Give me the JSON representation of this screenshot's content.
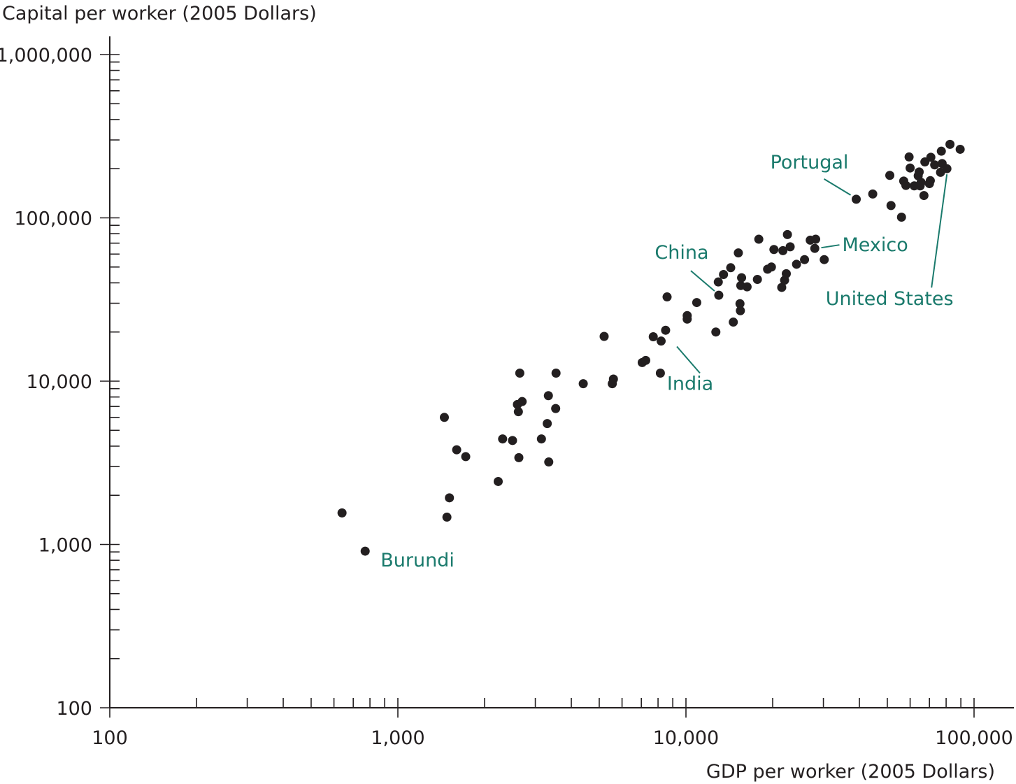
{
  "chart_data": {
    "type": "scatter",
    "xlabel": "GDP per worker (2005 Dollars)",
    "ylabel": "Capital per worker (2005 Dollars)",
    "xscale": "log",
    "yscale": "log",
    "xlim": [
      100,
      140000
    ],
    "ylim": [
      100,
      1200000
    ],
    "x_ticks": [
      100,
      1000,
      10000,
      100000
    ],
    "x_tick_labels": [
      "100",
      "1,000",
      "10,000",
      "100,000"
    ],
    "y_ticks": [
      100,
      1000,
      10000,
      100000,
      1000000
    ],
    "y_tick_labels": [
      "100",
      "1,000",
      "10,000",
      "100,000",
      "1,000,000"
    ],
    "grid": false,
    "marker_color": "#231f20",
    "annotation_color": "#1a7a6c",
    "points": [
      [
        640,
        1560
      ],
      [
        770,
        910
      ],
      [
        1450,
        6000
      ],
      [
        1480,
        1470
      ],
      [
        1510,
        1930
      ],
      [
        1600,
        3800
      ],
      [
        1720,
        3450
      ],
      [
        2230,
        2430
      ],
      [
        2310,
        4430
      ],
      [
        2500,
        4330
      ],
      [
        2600,
        7200
      ],
      [
        2620,
        6500
      ],
      [
        2630,
        3400
      ],
      [
        2650,
        11200
      ],
      [
        2700,
        7500
      ],
      [
        3150,
        4430
      ],
      [
        3300,
        5500
      ],
      [
        3330,
        8150
      ],
      [
        3340,
        3200
      ],
      [
        3530,
        6800
      ],
      [
        3540,
        11200
      ],
      [
        4400,
        9650
      ],
      [
        5200,
        18800
      ],
      [
        5550,
        9650
      ],
      [
        5600,
        10300
      ],
      [
        7050,
        13000
      ],
      [
        7250,
        13400
      ],
      [
        7700,
        18700
      ],
      [
        8150,
        11200
      ],
      [
        8200,
        17600
      ],
      [
        8500,
        20500
      ],
      [
        8600,
        32800
      ],
      [
        10100,
        25200
      ],
      [
        10100,
        24000
      ],
      [
        10900,
        30300
      ],
      [
        12700,
        20000
      ],
      [
        13000,
        33600
      ],
      [
        12950,
        40500
      ],
      [
        13500,
        45000
      ],
      [
        14300,
        49500
      ],
      [
        14600,
        23000
      ],
      [
        15200,
        61000
      ],
      [
        15400,
        29800
      ],
      [
        15450,
        27000
      ],
      [
        15500,
        38500
      ],
      [
        15600,
        43000
      ],
      [
        16300,
        37800
      ],
      [
        17700,
        42000
      ],
      [
        17900,
        74000
      ],
      [
        19200,
        48500
      ],
      [
        19800,
        50000
      ],
      [
        20200,
        64000
      ],
      [
        21500,
        37500
      ],
      [
        21700,
        63000
      ],
      [
        22000,
        41500
      ],
      [
        22300,
        45500
      ],
      [
        22500,
        79000
      ],
      [
        23000,
        66500
      ],
      [
        24200,
        52000
      ],
      [
        25800,
        55500
      ],
      [
        27000,
        73000
      ],
      [
        28000,
        65000
      ],
      [
        28200,
        74000
      ],
      [
        30200,
        55500
      ],
      [
        39000,
        130000
      ],
      [
        44500,
        140000
      ],
      [
        51000,
        182000
      ],
      [
        51500,
        119000
      ],
      [
        56000,
        101000
      ],
      [
        57000,
        168000
      ],
      [
        58000,
        158000
      ],
      [
        59500,
        236000
      ],
      [
        60000,
        202000
      ],
      [
        62000,
        157000
      ],
      [
        64000,
        181000
      ],
      [
        64500,
        191000
      ],
      [
        65000,
        157000
      ],
      [
        65500,
        165000
      ],
      [
        67000,
        137000
      ],
      [
        67500,
        220000
      ],
      [
        70000,
        162000
      ],
      [
        70500,
        169000
      ],
      [
        70800,
        235000
      ],
      [
        73000,
        211000
      ],
      [
        76500,
        190000
      ],
      [
        77000,
        256000
      ],
      [
        77500,
        215000
      ],
      [
        80500,
        200000
      ],
      [
        82500,
        282000
      ],
      [
        89500,
        263000
      ]
    ],
    "annotations": [
      {
        "label": "Burundi",
        "x": 770,
        "y": 910
      },
      {
        "label": "India",
        "x": 8600,
        "y": 18700
      },
      {
        "label": "China",
        "x": 13000,
        "y": 33600
      },
      {
        "label": "Mexico",
        "x": 28200,
        "y": 65000
      },
      {
        "label": "Portugal",
        "x": 39000,
        "y": 130000
      },
      {
        "label": "United States",
        "x": 80500,
        "y": 200000
      }
    ]
  }
}
